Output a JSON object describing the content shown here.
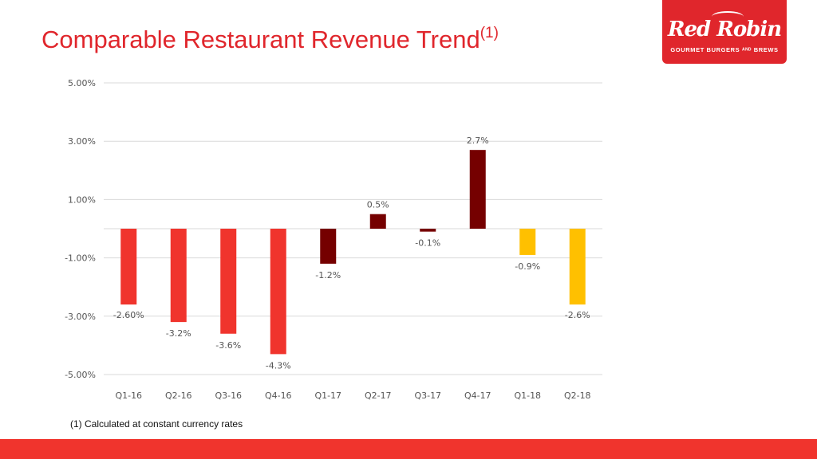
{
  "title": "Comparable Restaurant Revenue Trend",
  "title_superscript": "(1)",
  "logo": {
    "name": "Red Robin",
    "tagline": "GOURMET BURGERS and BREWS",
    "tagline_display": "GOURMET BURGERS ᴬᴺᴰ BREWS"
  },
  "footnote": "(1) Calculated at constant currency rates",
  "colors": {
    "red": "#f0342d",
    "maroon": "#750000",
    "yellow": "#ffc000",
    "title": "#e0262c"
  },
  "chart_data": {
    "type": "bar",
    "title": "Comparable Restaurant Revenue Trend",
    "categories": [
      "Q1-16",
      "Q2-16",
      "Q3-16",
      "Q4-16",
      "Q1-17",
      "Q2-17",
      "Q3-17",
      "Q4-17",
      "Q1-18",
      "Q2-18"
    ],
    "values": [
      -2.6,
      -3.2,
      -3.6,
      -4.3,
      -1.2,
      0.5,
      -0.1,
      2.7,
      -0.9,
      -2.6
    ],
    "data_labels": [
      "-2.60%",
      "-3.2%",
      "-3.6%",
      "-4.3%",
      "-1.2%",
      "0.5%",
      "-0.1%",
      "2.7%",
      "-0.9%",
      "-2.6%"
    ],
    "bar_colors": [
      "#f0342d",
      "#f0342d",
      "#f0342d",
      "#f0342d",
      "#750000",
      "#750000",
      "#750000",
      "#750000",
      "#ffc000",
      "#ffc000"
    ],
    "y_ticks": [
      5,
      3,
      1,
      -1,
      -3,
      -5
    ],
    "y_tick_labels": [
      "5.00%",
      "3.00%",
      "1.00%",
      "-1.00%",
      "-3.00%",
      "-5.00%"
    ],
    "ylim": [
      -5,
      5
    ],
    "xlabel": "",
    "ylabel": "",
    "grid": true
  }
}
